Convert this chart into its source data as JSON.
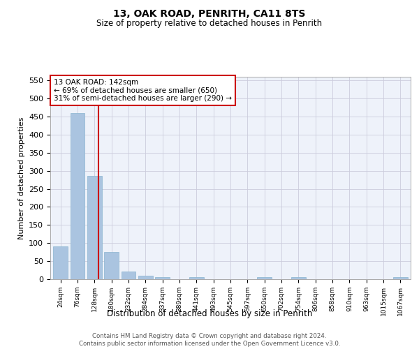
{
  "title": "13, OAK ROAD, PENRITH, CA11 8TS",
  "subtitle": "Size of property relative to detached houses in Penrith",
  "xlabel": "Distribution of detached houses by size in Penrith",
  "ylabel": "Number of detached properties",
  "bar_labels": [
    "24sqm",
    "76sqm",
    "128sqm",
    "180sqm",
    "232sqm",
    "284sqm",
    "337sqm",
    "389sqm",
    "441sqm",
    "493sqm",
    "545sqm",
    "597sqm",
    "650sqm",
    "702sqm",
    "754sqm",
    "806sqm",
    "858sqm",
    "910sqm",
    "963sqm",
    "1015sqm",
    "1067sqm"
  ],
  "bar_values": [
    90,
    460,
    285,
    75,
    22,
    10,
    6,
    0,
    5,
    0,
    0,
    0,
    5,
    0,
    5,
    0,
    0,
    0,
    0,
    0,
    5
  ],
  "bar_color": "#aac4e0",
  "bar_edgecolor": "#8ab4d0",
  "grid_color": "#ccccdd",
  "background_color": "#eef2fa",
  "vline_x": 2.25,
  "vline_color": "#cc0000",
  "annotation_text": "13 OAK ROAD: 142sqm\n← 69% of detached houses are smaller (650)\n31% of semi-detached houses are larger (290) →",
  "annotation_box_facecolor": "#ffffff",
  "annotation_box_edgecolor": "#cc0000",
  "footer_text": "Contains HM Land Registry data © Crown copyright and database right 2024.\nContains public sector information licensed under the Open Government Licence v3.0.",
  "ylim": [
    0,
    560
  ],
  "yticks": [
    0,
    50,
    100,
    150,
    200,
    250,
    300,
    350,
    400,
    450,
    500,
    550
  ]
}
